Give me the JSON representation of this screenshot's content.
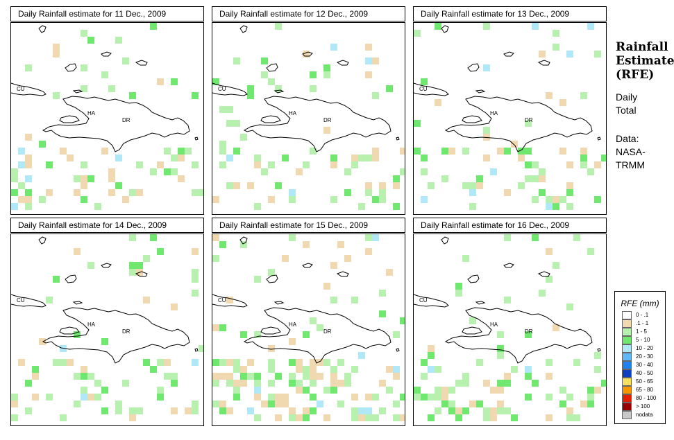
{
  "panels": [
    {
      "title": "Daily Rainfall estimate for  11 Dec., 2009"
    },
    {
      "title": "Daily Rainfall estimate for  12 Dec., 2009"
    },
    {
      "title": "Daily Rainfall estimate for  13 Dec., 2009"
    },
    {
      "title": "Daily Rainfall estimate for  14 Dec., 2009"
    },
    {
      "title": "Daily Rainfall estimate for  15 Dec., 2009"
    },
    {
      "title": "Daily Rainfall estimate for  16 Dec., 2009"
    }
  ],
  "map_labels": {
    "cuba": "CU",
    "haiti": "HA",
    "dr": "DR"
  },
  "side": {
    "heading_line1": "Rainfall",
    "heading_line2": "Estimate",
    "heading_line3": "(RFE)",
    "daily": "Daily",
    "total": "Total",
    "data_label": "Data:",
    "source_line1": "NASA-",
    "source_line2": "TRMM"
  },
  "legend": {
    "title": "RFE (mm)",
    "items": [
      {
        "label": "0 - .1",
        "color": "#ffffff"
      },
      {
        "label": ".1 - 1",
        "color": "#f0d8b0"
      },
      {
        "label": "1 - 5",
        "color": "#b8f0b0"
      },
      {
        "label": "5 - 10",
        "color": "#70e870"
      },
      {
        "label": "10 - 20",
        "color": "#b0e8f8"
      },
      {
        "label": "20 - 30",
        "color": "#60b8f8"
      },
      {
        "label": "30 - 40",
        "color": "#2080f0"
      },
      {
        "label": "40 - 50",
        "color": "#1040c0"
      },
      {
        "label": "50 - 65",
        "color": "#f8e060"
      },
      {
        "label": "65 - 80",
        "color": "#f89800"
      },
      {
        "label": "80 - 100",
        "color": "#e02000"
      },
      {
        "label": "> 100",
        "color": "#980000"
      },
      {
        "label": "nodata",
        "color": "#c8c8c8"
      }
    ]
  }
}
